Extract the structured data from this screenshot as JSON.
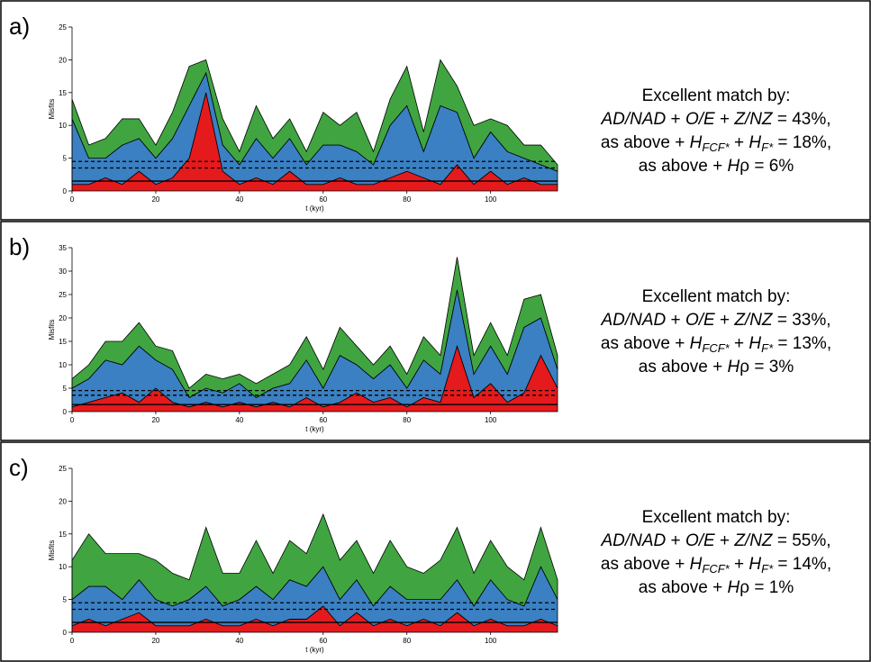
{
  "chart_data": [
    {
      "type": "stacked-area",
      "panel_label": "a)",
      "ylabel": "Misfits",
      "xlabel": "t (kyr)",
      "x": [
        0,
        4,
        8,
        12,
        16,
        20,
        24,
        28,
        32,
        36,
        40,
        44,
        48,
        52,
        56,
        60,
        64,
        68,
        72,
        76,
        80,
        84,
        88,
        92,
        96,
        100,
        104,
        108,
        112,
        116
      ],
      "xlim": [
        0,
        116
      ],
      "xticks": [
        0,
        20,
        40,
        60,
        80,
        100
      ],
      "ylim": [
        0,
        25
      ],
      "yticks": [
        0,
        5,
        10,
        15,
        20,
        25
      ],
      "series": [
        {
          "color": "#e41a1c",
          "values": [
            1,
            1,
            2,
            1,
            3,
            1,
            2,
            5,
            15,
            3,
            1,
            2,
            1,
            3,
            1,
            1,
            2,
            1,
            1,
            2,
            3,
            2,
            1,
            4,
            1,
            3,
            1,
            2,
            1,
            1
          ]
        },
        {
          "color": "#3a80c2",
          "values": [
            10,
            4,
            3,
            6,
            5,
            4,
            6,
            8,
            3,
            4,
            3,
            6,
            4,
            5,
            3,
            6,
            5,
            5,
            3,
            8,
            10,
            4,
            12,
            8,
            4,
            6,
            5,
            3,
            3,
            2
          ]
        },
        {
          "color": "#40a540",
          "values": [
            3,
            2,
            3,
            4,
            3,
            2,
            4,
            6,
            2,
            4,
            2,
            5,
            3,
            3,
            2,
            5,
            3,
            6,
            2,
            4,
            6,
            3,
            7,
            4,
            5,
            2,
            4,
            2,
            3,
            1
          ]
        }
      ],
      "hlines": [
        {
          "value": 1.5,
          "dashed": false
        },
        {
          "value": 3.5,
          "dashed": true
        },
        {
          "value": 4.5,
          "dashed": true
        }
      ],
      "annotation": [
        [
          {
            "text": "Excellent match by:"
          }
        ],
        [
          {
            "text": "AD/NAD",
            "style": "italic"
          },
          {
            "text": " + "
          },
          {
            "text": "O/E",
            "style": "italic"
          },
          {
            "text": " + "
          },
          {
            "text": "Z/NZ",
            "style": "italic"
          },
          {
            "text": " = 43%,"
          }
        ],
        [
          {
            "text": "as above + "
          },
          {
            "text": "H",
            "style": "italic"
          },
          {
            "text": "FCF*",
            "style": "sub"
          },
          {
            "text": " + "
          },
          {
            "text": "H",
            "style": "italic"
          },
          {
            "text": "F*",
            "style": "sub"
          },
          {
            "text": " = 18%,"
          }
        ],
        [
          {
            "text": "as above + "
          },
          {
            "text": "H",
            "style": "italic"
          },
          {
            "text": "ρ"
          },
          {
            "text": " = 6%"
          }
        ]
      ]
    },
    {
      "type": "stacked-area",
      "panel_label": "b)",
      "ylabel": "Misfits",
      "xlabel": "t (kyr)",
      "x": [
        0,
        4,
        8,
        12,
        16,
        20,
        24,
        28,
        32,
        36,
        40,
        44,
        48,
        52,
        56,
        60,
        64,
        68,
        72,
        76,
        80,
        84,
        88,
        92,
        96,
        100,
        104,
        108,
        112,
        116
      ],
      "xlim": [
        0,
        116
      ],
      "xticks": [
        0,
        20,
        40,
        60,
        80,
        100
      ],
      "ylim": [
        0,
        35
      ],
      "yticks": [
        0,
        5,
        10,
        15,
        20,
        25,
        30,
        35
      ],
      "series": [
        {
          "color": "#e41a1c",
          "values": [
            1,
            2,
            3,
            4,
            2,
            5,
            2,
            1,
            2,
            1,
            2,
            1,
            2,
            1,
            3,
            1,
            2,
            4,
            2,
            3,
            1,
            3,
            2,
            14,
            3,
            6,
            2,
            4,
            12,
            5
          ]
        },
        {
          "color": "#3a80c2",
          "values": [
            4,
            5,
            8,
            6,
            12,
            6,
            7,
            2,
            3,
            3,
            4,
            2,
            3,
            5,
            8,
            4,
            10,
            6,
            5,
            7,
            4,
            8,
            6,
            12,
            5,
            8,
            6,
            14,
            8,
            4
          ]
        },
        {
          "color": "#40a540",
          "values": [
            2,
            3,
            4,
            5,
            5,
            3,
            4,
            2,
            3,
            3,
            2,
            3,
            3,
            4,
            5,
            4,
            6,
            4,
            3,
            4,
            3,
            5,
            4,
            7,
            4,
            5,
            4,
            6,
            5,
            3
          ]
        }
      ],
      "hlines": [
        {
          "value": 1.5,
          "dashed": false
        },
        {
          "value": 3.5,
          "dashed": true
        },
        {
          "value": 4.5,
          "dashed": true
        }
      ],
      "annotation": [
        [
          {
            "text": "Excellent match by:"
          }
        ],
        [
          {
            "text": "AD/NAD",
            "style": "italic"
          },
          {
            "text": " + "
          },
          {
            "text": "O/E",
            "style": "italic"
          },
          {
            "text": " + "
          },
          {
            "text": "Z/NZ",
            "style": "italic"
          },
          {
            "text": " = 33%,"
          }
        ],
        [
          {
            "text": "as above + "
          },
          {
            "text": "H",
            "style": "italic"
          },
          {
            "text": "FCF*",
            "style": "sub"
          },
          {
            "text": " + "
          },
          {
            "text": "H",
            "style": "italic"
          },
          {
            "text": "F*",
            "style": "sub"
          },
          {
            "text": " = 13%,"
          }
        ],
        [
          {
            "text": "as above + "
          },
          {
            "text": "H",
            "style": "italic"
          },
          {
            "text": "ρ"
          },
          {
            "text": " = 3%"
          }
        ]
      ]
    },
    {
      "type": "stacked-area",
      "panel_label": "c)",
      "ylabel": "Misfits",
      "xlabel": "t (kyr)",
      "x": [
        0,
        4,
        8,
        12,
        16,
        20,
        24,
        28,
        32,
        36,
        40,
        44,
        48,
        52,
        56,
        60,
        64,
        68,
        72,
        76,
        80,
        84,
        88,
        92,
        96,
        100,
        104,
        108,
        112,
        116
      ],
      "xlim": [
        0,
        116
      ],
      "xticks": [
        0,
        20,
        40,
        60,
        80,
        100
      ],
      "ylim": [
        0,
        25
      ],
      "yticks": [
        0,
        5,
        10,
        15,
        20,
        25
      ],
      "series": [
        {
          "color": "#e41a1c",
          "values": [
            1,
            2,
            1,
            2,
            3,
            1,
            1,
            1,
            2,
            1,
            1,
            2,
            1,
            2,
            2,
            4,
            1,
            3,
            1,
            2,
            1,
            2,
            1,
            3,
            1,
            2,
            1,
            1,
            2,
            1
          ]
        },
        {
          "color": "#3a80c2",
          "values": [
            4,
            5,
            6,
            3,
            5,
            4,
            3,
            4,
            5,
            3,
            4,
            5,
            4,
            6,
            5,
            6,
            4,
            5,
            3,
            5,
            4,
            3,
            4,
            5,
            3,
            6,
            4,
            3,
            8,
            4
          ]
        },
        {
          "color": "#40a540",
          "values": [
            6,
            8,
            5,
            7,
            4,
            6,
            5,
            3,
            9,
            5,
            4,
            7,
            4,
            6,
            5,
            8,
            6,
            6,
            5,
            7,
            5,
            4,
            6,
            8,
            5,
            6,
            5,
            4,
            6,
            3
          ]
        }
      ],
      "hlines": [
        {
          "value": 1.5,
          "dashed": false
        },
        {
          "value": 3.5,
          "dashed": true
        },
        {
          "value": 4.5,
          "dashed": true
        }
      ],
      "annotation": [
        [
          {
            "text": "Excellent match by:"
          }
        ],
        [
          {
            "text": "AD/NAD",
            "style": "italic"
          },
          {
            "text": " + "
          },
          {
            "text": "O/E",
            "style": "italic"
          },
          {
            "text": " + "
          },
          {
            "text": "Z/NZ",
            "style": "italic"
          },
          {
            "text": " = 55%,"
          }
        ],
        [
          {
            "text": "as above + "
          },
          {
            "text": "H",
            "style": "italic"
          },
          {
            "text": "FCF*",
            "style": "sub"
          },
          {
            "text": " + "
          },
          {
            "text": "H",
            "style": "italic"
          },
          {
            "text": "F*",
            "style": "sub"
          },
          {
            "text": " = 14%,"
          }
        ],
        [
          {
            "text": "as above + "
          },
          {
            "text": "H",
            "style": "italic"
          },
          {
            "text": "ρ"
          },
          {
            "text": " = 1%"
          }
        ]
      ]
    }
  ]
}
